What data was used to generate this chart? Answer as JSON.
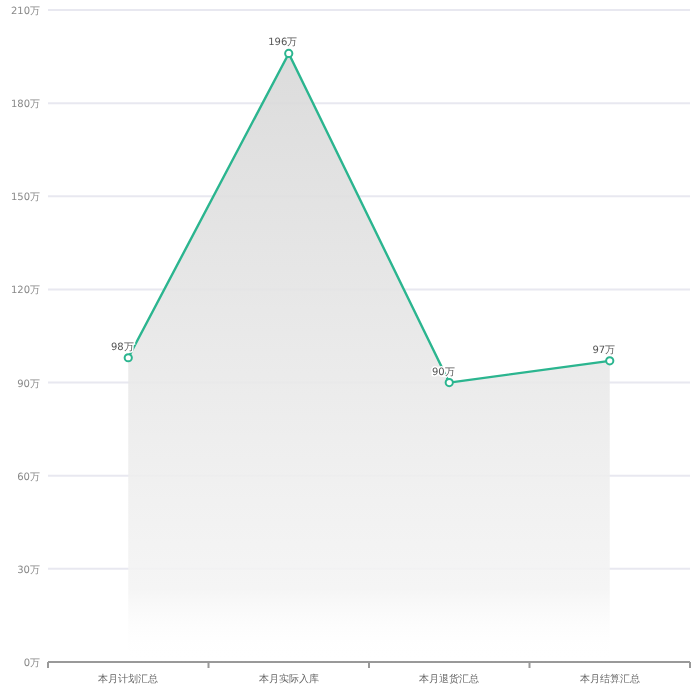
{
  "chart_data": {
    "type": "area",
    "categories": [
      "本月计划汇总",
      "本月实际入库",
      "本月退货汇总",
      "本月结算汇总"
    ],
    "series": [
      {
        "color": "#2bb58f",
        "values": [
          98,
          196,
          90,
          97
        ],
        "value_labels": [
          "98万",
          "196万",
          "90万",
          "97万"
        ]
      }
    ],
    "ylim": [
      0,
      210
    ],
    "yticks": [
      {
        "value": 0,
        "label": "0万"
      },
      {
        "value": 30,
        "label": "30万"
      },
      {
        "value": 60,
        "label": "60万"
      },
      {
        "value": 90,
        "label": "90万"
      },
      {
        "value": 120,
        "label": "120万"
      },
      {
        "value": 150,
        "label": "150万"
      },
      {
        "value": 180,
        "label": "180万"
      },
      {
        "value": 210,
        "label": "210万"
      }
    ],
    "grid": "y",
    "marker": "circle"
  }
}
